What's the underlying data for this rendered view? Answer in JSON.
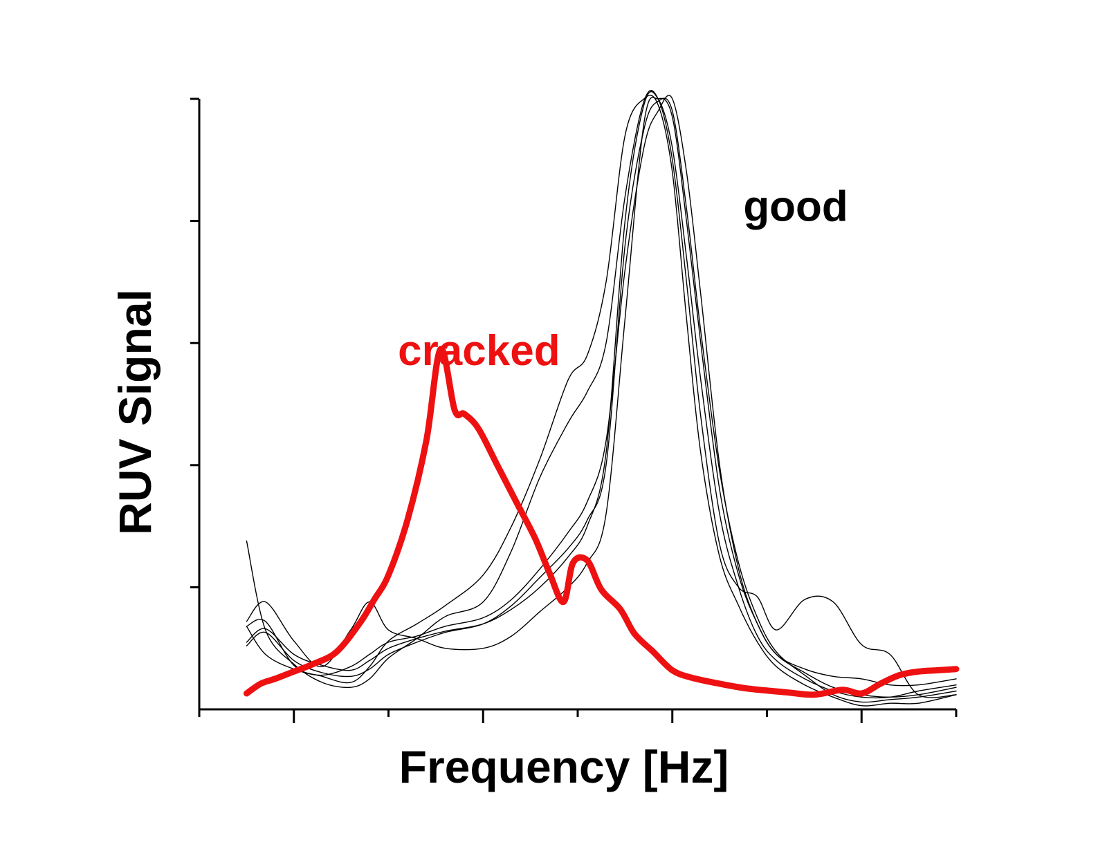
{
  "chart_data": {
    "type": "line",
    "title": "",
    "xlabel": "Frequency [Hz]",
    "ylabel": "RUV Signal",
    "xlim": [
      0,
      8
    ],
    "ylim": [
      0,
      5
    ],
    "x_ticks_major": [
      1,
      3,
      5,
      7
    ],
    "x_ticks_minor": [
      0,
      2,
      4,
      6,
      8
    ],
    "y_ticks": [
      1,
      2,
      3,
      4,
      5
    ],
    "grid": false,
    "legend": "none",
    "tick_labels_shown": false,
    "annotations": [
      {
        "text": "cracked",
        "color": "#ee1111",
        "x": 2.1,
        "y": 2.82
      },
      {
        "text": "good",
        "color": "#000000",
        "x": 5.75,
        "y": 4.0
      }
    ],
    "series": [
      {
        "color": "#ee1111",
        "style": "thick",
        "x": [
          0.5,
          0.65,
          0.8,
          1.0,
          1.2,
          1.45,
          1.7,
          1.85,
          2.0,
          2.2,
          2.4,
          2.55,
          2.7,
          2.8,
          2.95,
          3.15,
          3.35,
          3.55,
          3.7,
          3.85,
          3.95,
          4.1,
          4.25,
          4.45,
          4.6,
          4.8,
          5.0,
          5.2,
          5.5,
          5.8,
          6.2,
          6.5,
          6.8,
          7.0,
          7.2,
          7.4,
          7.6,
          7.8,
          8.0
        ],
        "y": [
          0.13,
          0.21,
          0.25,
          0.31,
          0.37,
          0.47,
          0.71,
          0.9,
          1.1,
          1.55,
          2.2,
          2.95,
          2.45,
          2.42,
          2.3,
          2.0,
          1.7,
          1.4,
          1.12,
          0.88,
          1.2,
          1.22,
          0.98,
          0.82,
          0.62,
          0.47,
          0.32,
          0.26,
          0.21,
          0.17,
          0.14,
          0.12,
          0.16,
          0.13,
          0.21,
          0.28,
          0.31,
          0.32,
          0.33
        ]
      },
      {
        "color": "#000000",
        "style": "thin",
        "x": [
          0.5,
          0.7,
          1.0,
          1.3,
          1.6,
          1.8,
          2.0,
          2.3,
          2.6,
          3.0,
          3.3,
          3.6,
          3.9,
          4.1,
          4.3,
          4.5,
          4.7,
          4.85,
          5.0,
          5.15,
          5.3,
          5.5,
          5.7,
          5.9,
          6.1,
          6.4,
          6.7,
          7.0,
          7.3,
          7.6,
          8.0
        ],
        "y": [
          1.38,
          0.65,
          0.37,
          0.22,
          0.18,
          0.25,
          0.42,
          0.58,
          0.76,
          0.88,
          1.3,
          1.9,
          2.35,
          2.6,
          3.0,
          4.2,
          4.98,
          5.0,
          4.5,
          3.5,
          2.4,
          1.35,
          1.0,
          0.92,
          0.65,
          0.9,
          0.88,
          0.53,
          0.45,
          0.12,
          0.12
        ]
      },
      {
        "color": "#000000",
        "style": "thin",
        "x": [
          0.5,
          0.7,
          1.0,
          1.3,
          1.6,
          1.8,
          2.0,
          2.3,
          2.6,
          3.0,
          3.3,
          3.6,
          3.9,
          4.1,
          4.3,
          4.5,
          4.7,
          4.85,
          5.0,
          5.15,
          5.3,
          5.5,
          5.7,
          5.9,
          6.1,
          6.4,
          6.7,
          7.0,
          7.3,
          7.6,
          8.0
        ],
        "y": [
          0.72,
          0.88,
          0.56,
          0.35,
          0.65,
          0.88,
          0.65,
          0.58,
          0.5,
          0.5,
          0.6,
          0.8,
          1.0,
          1.2,
          1.6,
          3.2,
          4.8,
          5.0,
          4.85,
          4.0,
          3.0,
          1.8,
          1.1,
          0.7,
          0.45,
          0.33,
          0.27,
          0.25,
          0.2,
          0.2,
          0.25
        ]
      },
      {
        "color": "#000000",
        "style": "thin",
        "x": [
          0.5,
          0.7,
          1.0,
          1.3,
          1.6,
          1.8,
          2.0,
          2.3,
          2.6,
          3.0,
          3.3,
          3.6,
          3.9,
          4.1,
          4.3,
          4.5,
          4.7,
          4.85,
          5.0,
          5.15,
          5.3,
          5.5,
          5.7,
          5.9,
          6.1,
          6.4,
          6.7,
          7.0,
          7.3,
          7.6,
          8.0
        ],
        "y": [
          0.68,
          0.72,
          0.36,
          0.27,
          0.22,
          0.35,
          0.56,
          0.7,
          0.85,
          1.1,
          1.5,
          2.05,
          2.7,
          2.9,
          3.5,
          4.7,
          5.0,
          4.95,
          4.4,
          3.2,
          2.1,
          1.25,
          0.85,
          0.55,
          0.35,
          0.2,
          0.1,
          0.03,
          0.05,
          0.05,
          0.12
        ]
      },
      {
        "color": "#000000",
        "style": "thin",
        "x": [
          0.5,
          0.7,
          1.0,
          1.3,
          1.6,
          1.8,
          2.0,
          2.3,
          2.6,
          3.0,
          3.3,
          3.6,
          3.9,
          4.1,
          4.3,
          4.5,
          4.7,
          4.85,
          5.0,
          5.15,
          5.3,
          5.5,
          5.7,
          5.9,
          6.1,
          6.4,
          6.7,
          7.0,
          7.3,
          7.6,
          8.0
        ],
        "y": [
          0.52,
          0.63,
          0.4,
          0.3,
          0.27,
          0.33,
          0.45,
          0.55,
          0.63,
          0.7,
          0.85,
          1.08,
          1.32,
          1.55,
          2.0,
          3.8,
          4.75,
          4.98,
          4.9,
          4.1,
          3.1,
          1.95,
          1.2,
          0.75,
          0.47,
          0.28,
          0.12,
          0.06,
          0.08,
          0.1,
          0.15
        ]
      },
      {
        "color": "#000000",
        "style": "thin",
        "x": [
          0.5,
          0.7,
          1.0,
          1.3,
          1.6,
          1.8,
          2.0,
          2.3,
          2.6,
          3.0,
          3.3,
          3.6,
          3.9,
          4.1,
          4.3,
          4.5,
          4.7,
          4.85,
          5.0,
          5.15,
          5.3,
          5.5,
          5.7,
          5.9,
          6.1,
          6.4,
          6.7,
          7.0,
          7.3,
          7.6,
          8.0
        ],
        "y": [
          0.68,
          0.45,
          0.33,
          0.28,
          0.35,
          0.45,
          0.55,
          0.6,
          0.68,
          0.75,
          0.9,
          1.15,
          1.45,
          1.7,
          2.2,
          3.6,
          4.6,
          4.9,
          5.0,
          4.4,
          3.4,
          2.0,
          1.15,
          0.7,
          0.45,
          0.3,
          0.18,
          0.12,
          0.1,
          0.12,
          0.18
        ]
      },
      {
        "color": "#000000",
        "style": "thin",
        "x": [
          0.5,
          0.7,
          1.0,
          1.3,
          1.6,
          1.8,
          2.0,
          2.3,
          2.6,
          3.0,
          3.3,
          3.6,
          3.9,
          4.1,
          4.3,
          4.5,
          4.7,
          4.85,
          5.0,
          5.15,
          5.3,
          5.5,
          5.7,
          5.9,
          6.1,
          6.4,
          6.7,
          7.0,
          7.3,
          7.6,
          8.0
        ],
        "y": [
          0.55,
          0.66,
          0.45,
          0.36,
          0.32,
          0.4,
          0.5,
          0.58,
          0.64,
          0.7,
          0.82,
          1.0,
          1.25,
          1.5,
          2.1,
          4.0,
          4.95,
          5.0,
          4.6,
          3.7,
          2.7,
          1.6,
          1.0,
          0.6,
          0.4,
          0.25,
          0.15,
          0.1,
          0.1,
          0.15,
          0.2
        ]
      }
    ]
  }
}
